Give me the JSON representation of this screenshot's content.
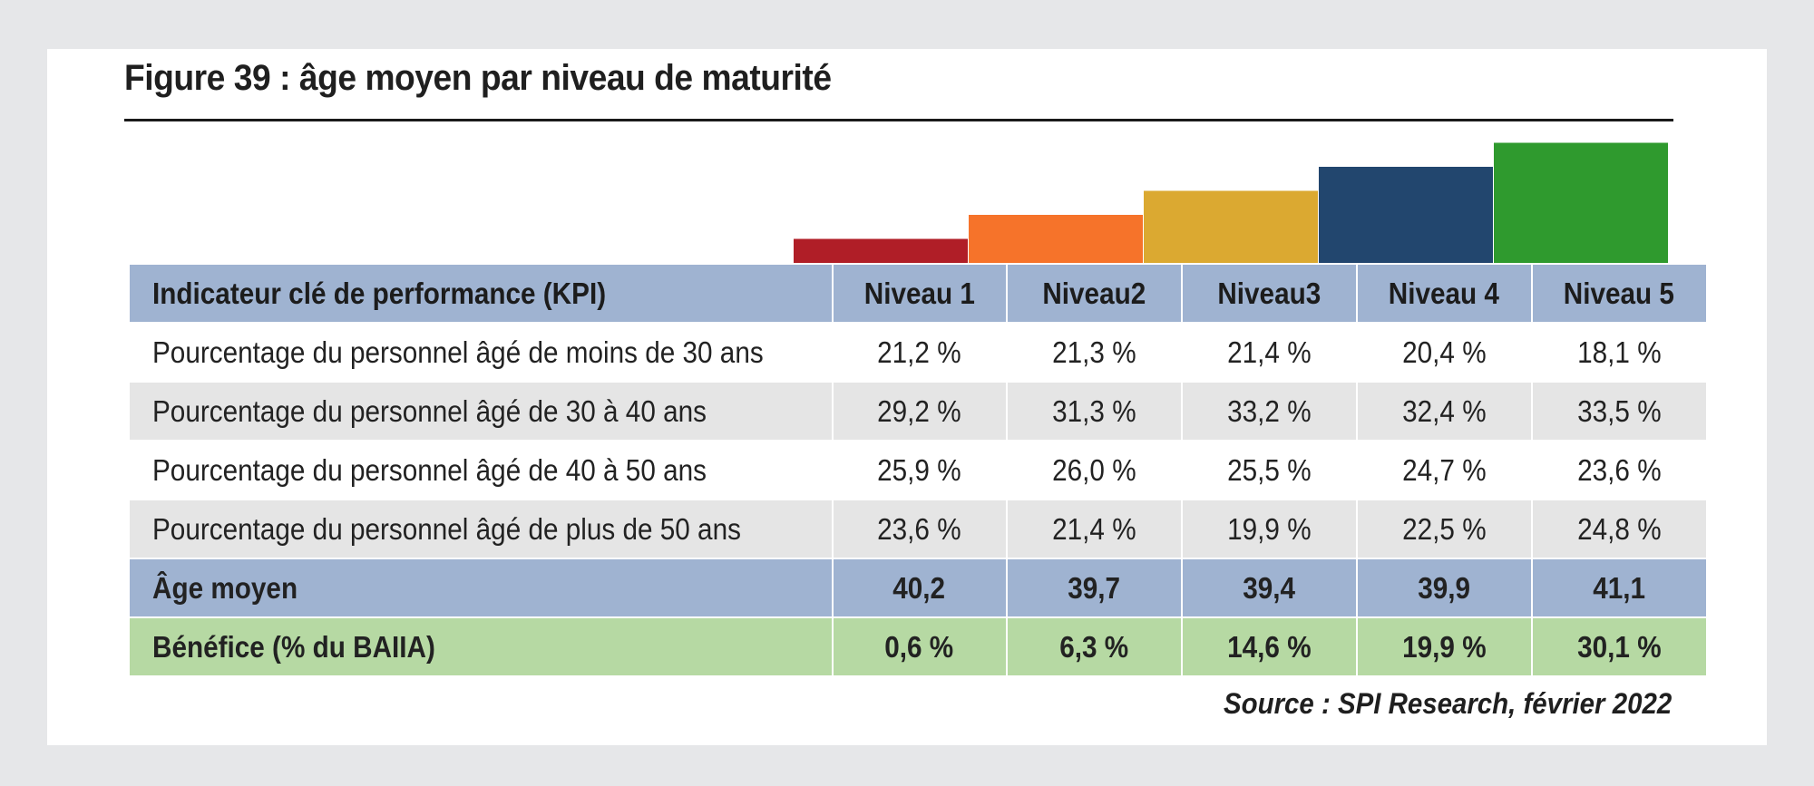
{
  "figure": {
    "title": "Figure 39 : âge moyen par niveau de maturité",
    "source": "Source : SPI Research, février 2022"
  },
  "steps": [
    {
      "level": 1,
      "color": "#b01e27"
    },
    {
      "level": 2,
      "color": "#f6732a"
    },
    {
      "level": 3,
      "color": "#dba931"
    },
    {
      "level": 4,
      "color": "#22466e"
    },
    {
      "level": 5,
      "color": "#2f9a2e"
    }
  ],
  "table": {
    "header": {
      "kpi": "Indicateur clé de performance (KPI)",
      "levels": [
        "Niveau 1",
        "Niveau2",
        "Niveau3",
        "Niveau 4",
        "Niveau 5"
      ]
    },
    "rows": [
      {
        "label": "Pourcentage du personnel âgé de moins de 30 ans",
        "values": [
          "21,2 %",
          "21,3 %",
          "21,4 %",
          "20,4 %",
          "18,1 %"
        ]
      },
      {
        "label": "Pourcentage du personnel âgé de 30 à 40 ans",
        "values": [
          "29,2 %",
          "31,3 %",
          "33,2 %",
          "32,4 %",
          "33,5 %"
        ]
      },
      {
        "label": "Pourcentage du personnel âgé de 40 à 50 ans",
        "values": [
          "25,9 %",
          "26,0 %",
          "25,5 %",
          "24,7 %",
          "23,6 %"
        ]
      },
      {
        "label": "Pourcentage du personnel âgé de plus de 50 ans",
        "values": [
          "23,6 %",
          "21,4 %",
          "19,9 %",
          "22,5 %",
          "24,8 %"
        ]
      },
      {
        "label": "Âge moyen",
        "values": [
          "40,2",
          "39,7",
          "39,4",
          "39,9",
          "41,1"
        ]
      },
      {
        "label": "Bénéfice (% du BAIIA)",
        "values": [
          "0,6 %",
          "6,3 %",
          "14,6 %",
          "19,9 %",
          "30,1 %"
        ]
      }
    ]
  }
}
